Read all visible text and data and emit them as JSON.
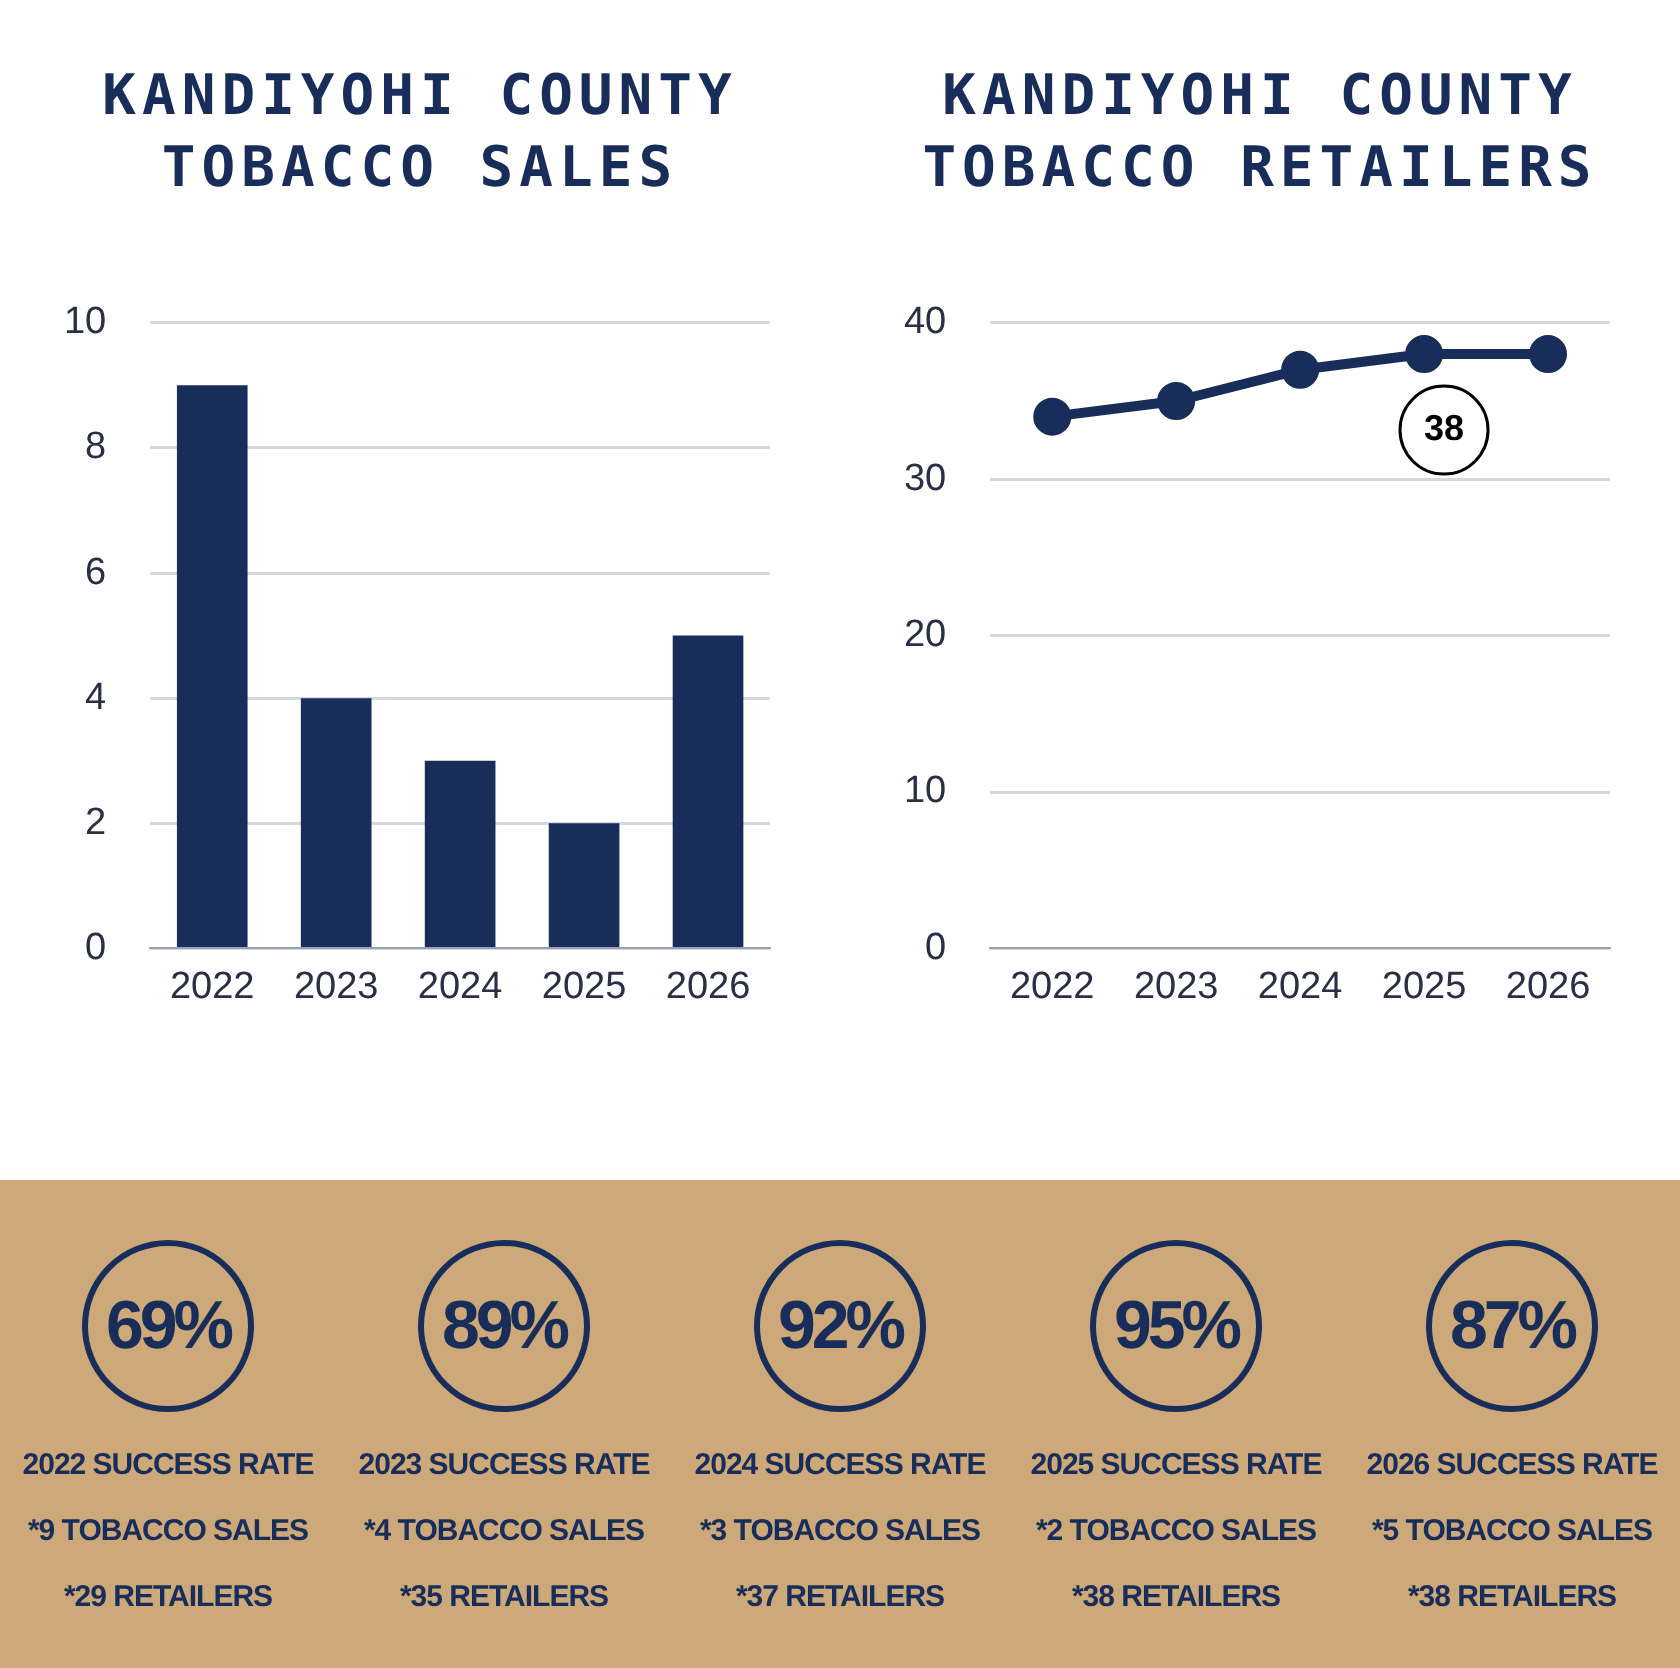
{
  "chart_data": [
    {
      "type": "bar",
      "title": "KANDIYOHI COUNTY TOBACCO SALES",
      "categories": [
        "2022",
        "2023",
        "2024",
        "2025",
        "2026"
      ],
      "values": [
        9,
        4,
        3,
        2,
        5
      ],
      "color": "#182d5a",
      "ylim": [
        0,
        10
      ],
      "yticks": [
        0,
        2,
        4,
        6,
        8,
        10
      ],
      "grid": "y",
      "legend": false
    },
    {
      "type": "line",
      "title": "KANDIYOHI COUNTY TOBACCO RETAILERS",
      "categories": [
        "2022",
        "2023",
        "2024",
        "2025",
        "2026"
      ],
      "values": [
        34,
        35,
        37,
        38,
        38
      ],
      "color": "#182d5a",
      "ylim": [
        0,
        40
      ],
      "yticks": [
        0,
        10,
        20,
        30,
        40
      ],
      "grid": "y",
      "legend": false,
      "marker": "circle",
      "line_style": "solid",
      "annotations": [
        {
          "text": "38",
          "x": "2026",
          "y": 38
        }
      ]
    },
    {
      "type": "other",
      "annotations": [
        "69%",
        "2022 SUCCESS RATE",
        "*9 TOBACCO SALES",
        "*29 RETAILERS",
        "89%",
        "2023 SUCCESS RATE",
        "*4 TOBACCO SALES",
        "*35 RETAILERS",
        "92%",
        "2024 SUCCESS RATE",
        "*3 TOBACCO SALES",
        "*37 RETAILERS",
        "95%",
        "2025 SUCCESS RATE",
        "*2 TOBACCO SALES",
        "*38 RETAILERS",
        "87%",
        "2026 SUCCESS RATE",
        "*5 TOBACCO SALES",
        "*38 RETAILERS"
      ]
    }
  ]
}
